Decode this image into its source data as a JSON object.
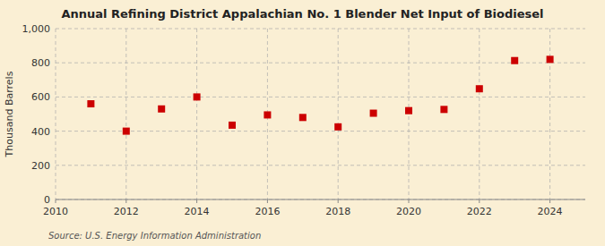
{
  "chart_data": {
    "type": "scatter",
    "title": "Annual Refining District Appalachian No. 1 Blender Net Input of Biodiesel",
    "ylabel": "Thousand Barrels",
    "source": "Source: U.S. Energy Information Administration",
    "x": [
      2011,
      2012,
      2013,
      2014,
      2015,
      2016,
      2017,
      2018,
      2019,
      2020,
      2021,
      2022,
      2023,
      2024
    ],
    "values": [
      560,
      400,
      530,
      600,
      435,
      495,
      480,
      425,
      505,
      520,
      527,
      648,
      813,
      820
    ],
    "color": "#cc0000",
    "marker": "square",
    "xlim": [
      2010,
      2025
    ],
    "ylim": [
      0,
      1000
    ],
    "xticks": [
      2010,
      2012,
      2014,
      2016,
      2018,
      2020,
      2022,
      2024
    ],
    "yticks": [
      0,
      200,
      400,
      600,
      800,
      {
        "value": 1000,
        "label": "1,000"
      }
    ],
    "grid": true
  }
}
